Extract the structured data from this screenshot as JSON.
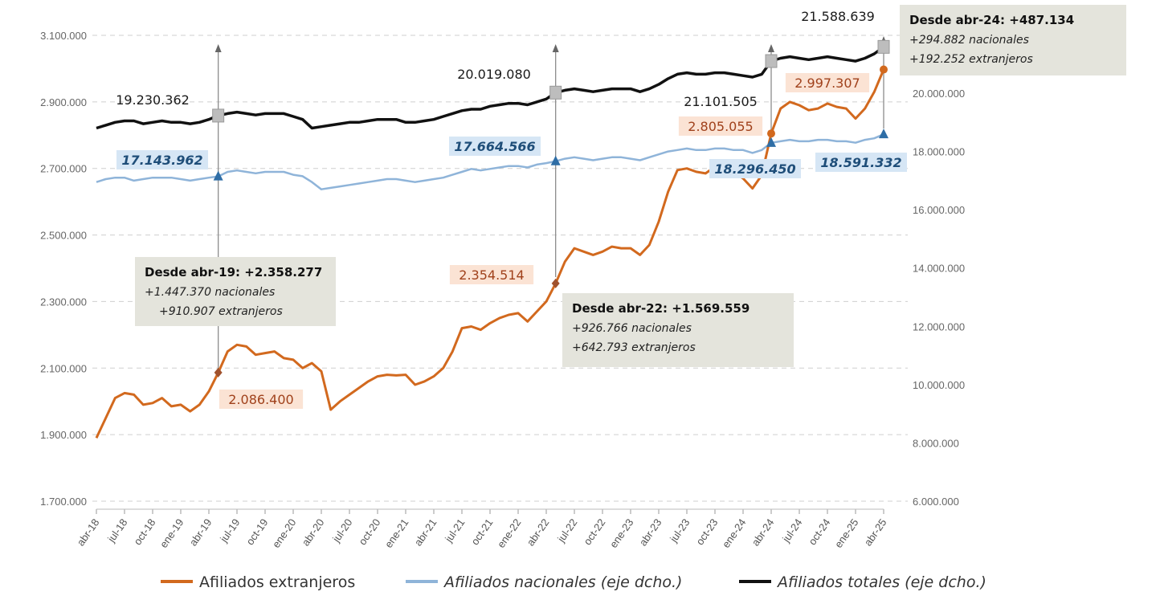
{
  "chart_data": {
    "type": "line",
    "title": "",
    "xlabel": "",
    "ylabel_left": "",
    "ylabel_right": "",
    "ylim_left": [
      1700000,
      3200000
    ],
    "ylim_right": [
      6000000,
      23000000
    ],
    "y_left_ticks": [
      "1.700.000",
      "1.900.000",
      "2.100.000",
      "2.300.000",
      "2.500.000",
      "2.700.000",
      "2.900.000",
      "3.100.000"
    ],
    "y_left_tick_values": [
      1700000,
      1900000,
      2100000,
      2300000,
      2500000,
      2700000,
      2900000,
      3100000
    ],
    "y_right_ticks": [
      "6.000.000",
      "8.000.000",
      "10.000.000",
      "12.000.000",
      "14.000.000",
      "16.000.000",
      "18.000.000",
      "20.000.000"
    ],
    "y_right_tick_values": [
      6000000,
      8000000,
      10000000,
      12000000,
      14000000,
      16000000,
      18000000,
      20000000
    ],
    "grid": "horizontal dashed",
    "x_start": "abr-18",
    "x_end": "abr-25",
    "x_tick_labels": [
      "abr-18",
      "jul-18",
      "oct-18",
      "ene-19",
      "abr-19",
      "jul-19",
      "oct-19",
      "ene-20",
      "abr-20",
      "jul-20",
      "oct-20",
      "ene-21",
      "abr-21",
      "jul-21",
      "oct-21",
      "ene-22",
      "abr-22",
      "jul-22",
      "oct-22",
      "ene-23",
      "abr-23",
      "jul-23",
      "oct-23",
      "ene-24",
      "abr-24",
      "jul-24",
      "oct-24",
      "ene-25",
      "abr-25"
    ],
    "legend_position": "bottom",
    "series": [
      {
        "name": "Afiliados extranjeros",
        "axis": "left",
        "color": "#D2691E",
        "values": [
          1890000,
          1950000,
          2010000,
          2025000,
          2020000,
          1990000,
          1995000,
          2010000,
          1985000,
          1990000,
          1970000,
          1990000,
          2030000,
          2086400,
          2150000,
          2170000,
          2165000,
          2140000,
          2145000,
          2150000,
          2130000,
          2125000,
          2100000,
          2115000,
          2090000,
          1975000,
          2000000,
          2020000,
          2040000,
          2060000,
          2075000,
          2080000,
          2078000,
          2080000,
          2050000,
          2060000,
          2075000,
          2100000,
          2150000,
          2220000,
          2225000,
          2215000,
          2235000,
          2250000,
          2260000,
          2265000,
          2240000,
          2270000,
          2300000,
          2354514,
          2420000,
          2460000,
          2450000,
          2440000,
          2450000,
          2465000,
          2460000,
          2460000,
          2440000,
          2470000,
          2540000,
          2630000,
          2695000,
          2700000,
          2690000,
          2685000,
          2705000,
          2705000,
          2690000,
          2670000,
          2640000,
          2680000,
          2805055,
          2880000,
          2900000,
          2890000,
          2875000,
          2880000,
          2895000,
          2885000,
          2880000,
          2850000,
          2880000,
          2930000,
          2997307
        ]
      },
      {
        "name": "Afiliados nacionales (eje dcho.)",
        "axis": "right",
        "color": "#8FB4D9",
        "values": [
          16950000,
          17050000,
          17100000,
          17100000,
          17000000,
          17050000,
          17100000,
          17100000,
          17100000,
          17050000,
          17000000,
          17050000,
          17100000,
          17143962,
          17300000,
          17350000,
          17300000,
          17250000,
          17300000,
          17300000,
          17300000,
          17200000,
          17150000,
          16950000,
          16700000,
          16750000,
          16800000,
          16850000,
          16900000,
          16950000,
          17000000,
          17050000,
          17050000,
          17000000,
          16950000,
          17000000,
          17050000,
          17100000,
          17200000,
          17300000,
          17400000,
          17350000,
          17400000,
          17450000,
          17500000,
          17500000,
          17450000,
          17550000,
          17600000,
          17664566,
          17750000,
          17800000,
          17750000,
          17700000,
          17750000,
          17800000,
          17800000,
          17750000,
          17700000,
          17800000,
          17900000,
          18000000,
          18050000,
          18100000,
          18050000,
          18050000,
          18100000,
          18100000,
          18050000,
          18050000,
          17950000,
          18050000,
          18296450,
          18350000,
          18400000,
          18350000,
          18350000,
          18400000,
          18400000,
          18350000,
          18350000,
          18300000,
          18400000,
          18450000,
          18591332
        ]
      },
      {
        "name": "Afiliados totales (eje dcho.)",
        "axis": "right",
        "color": "#111111",
        "values": [
          18800000,
          18900000,
          19000000,
          19050000,
          19050000,
          18950000,
          19000000,
          19050000,
          19000000,
          19000000,
          18950000,
          19000000,
          19100000,
          19230362,
          19300000,
          19350000,
          19300000,
          19250000,
          19300000,
          19300000,
          19300000,
          19200000,
          19100000,
          18800000,
          18850000,
          18900000,
          18950000,
          19000000,
          19000000,
          19050000,
          19100000,
          19100000,
          19100000,
          19000000,
          19000000,
          19050000,
          19100000,
          19200000,
          19300000,
          19400000,
          19450000,
          19450000,
          19550000,
          19600000,
          19650000,
          19650000,
          19600000,
          19700000,
          19800000,
          20019080,
          20100000,
          20150000,
          20100000,
          20050000,
          20100000,
          20150000,
          20150000,
          20150000,
          20050000,
          20150000,
          20300000,
          20500000,
          20650000,
          20700000,
          20650000,
          20650000,
          20700000,
          20700000,
          20650000,
          20600000,
          20550000,
          20650000,
          21101505,
          21200000,
          21250000,
          21200000,
          21150000,
          21200000,
          21250000,
          21200000,
          21150000,
          21100000,
          21200000,
          21350000,
          21588639
        ]
      }
    ],
    "point_labels": [
      {
        "text": "19.230.362",
        "series": 2,
        "index": 13
      },
      {
        "text": "17.143.962",
        "series": 1,
        "index": 13
      },
      {
        "text": "2.086.400",
        "series": 0,
        "index": 13
      },
      {
        "text": "20.019.080",
        "series": 2,
        "index": 49
      },
      {
        "text": "17.664.566",
        "series": 1,
        "index": 49
      },
      {
        "text": "2.354.514",
        "series": 0,
        "index": 49
      },
      {
        "text": "21.101.505",
        "series": 2,
        "index": 72
      },
      {
        "text": "18.296.450",
        "series": 1,
        "index": 72
      },
      {
        "text": "2.805.055",
        "series": 0,
        "index": 72
      },
      {
        "text": "21.588.639",
        "series": 2,
        "index": 84
      },
      {
        "text": "18.591.332",
        "series": 1,
        "index": 84
      },
      {
        "text": "2.997.307",
        "series": 0,
        "index": 84
      }
    ],
    "annotations": [
      {
        "title": "Desde abr-19: +2.358.277",
        "line1": "+1.447.370 nacionales",
        "line2": "+910.907 extranjeros"
      },
      {
        "title": "Desde abr-22: +1.569.559",
        "line1": "+926.766 nacionales",
        "line2": "+642.793 extranjeros"
      },
      {
        "title": "Desde abr-24: +487.134",
        "line1": "+294.882 nacionales",
        "line2": "+192.252 extranjeros"
      }
    ]
  }
}
